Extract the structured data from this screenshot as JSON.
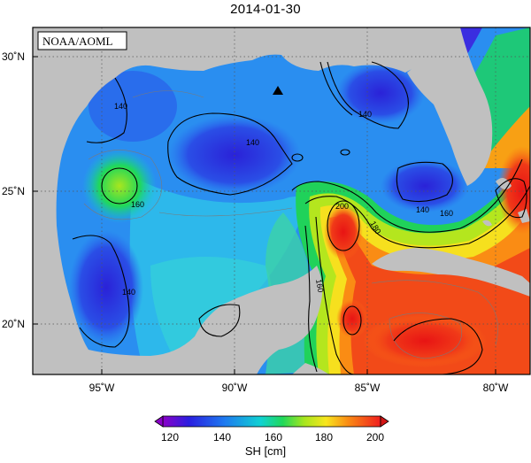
{
  "title": "2014-01-30",
  "watermark": "NOAA/AOML",
  "x_ticks": [
    "95˚W",
    "90˚W",
    "85˚W",
    "80˚W"
  ],
  "y_ticks": [
    "30˚N",
    "25˚N",
    "20˚N"
  ],
  "contour_labels": [
    "140",
    "140",
    "140",
    "140",
    "140",
    "160",
    "160",
    "160",
    "180",
    "200"
  ],
  "colorbar": {
    "ticks": [
      "120",
      "140",
      "160",
      "180",
      "200"
    ],
    "label": "SH [cm]",
    "colors": [
      "#8a00c8",
      "#2a1ee0",
      "#1e78f0",
      "#10d2d2",
      "#20d85a",
      "#a8e61e",
      "#f8e61e",
      "#fa8c14",
      "#f01e1e",
      "#d21414"
    ]
  },
  "colors": {
    "land": "#c0c0c0",
    "ocean_low": "#3a2ed8",
    "ocean_mid": "#1e96f0",
    "ocean_high": "#f01e1e"
  },
  "marker": "triangle-icon"
}
